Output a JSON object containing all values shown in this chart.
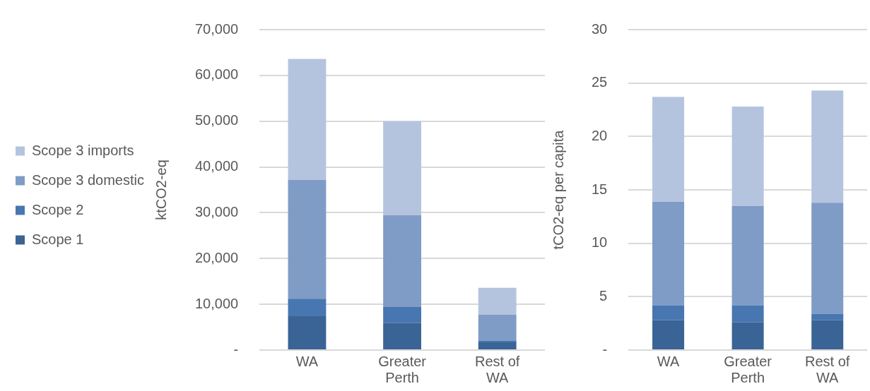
{
  "chart_data": [
    {
      "type": "bar",
      "stacked": true,
      "ylabel": "ktCO2-eq",
      "categories": [
        "WA",
        "Greater Perth",
        "Rest of WA"
      ],
      "series": [
        {
          "name": "Scope 1",
          "color": "#3b6496",
          "values": [
            7400,
            5900,
            1700
          ]
        },
        {
          "name": "Scope 2",
          "color": "#4876b0",
          "values": [
            3800,
            3500,
            300
          ]
        },
        {
          "name": "Scope 3 domestic",
          "color": "#7f9cc7",
          "values": [
            26000,
            20100,
            5700
          ]
        },
        {
          "name": "Scope 3 imports",
          "color": "#b5c4de",
          "values": [
            26400,
            20500,
            5900
          ]
        }
      ],
      "ylim": [
        0,
        70000
      ],
      "yticks": [
        {
          "value": 0,
          "label": "-"
        },
        {
          "value": 10000,
          "label": "10,000"
        },
        {
          "value": 20000,
          "label": "20,000"
        },
        {
          "value": 30000,
          "label": "30,000"
        },
        {
          "value": 40000,
          "label": "40,000"
        },
        {
          "value": 50000,
          "label": "50,000"
        },
        {
          "value": 60000,
          "label": "60,000"
        },
        {
          "value": 70000,
          "label": "70,000"
        }
      ],
      "grid": "y",
      "legend": "left"
    },
    {
      "type": "bar",
      "stacked": true,
      "ylabel": "tCO2-eq per capita",
      "categories": [
        "WA",
        "Greater Perth",
        "Rest of WA"
      ],
      "series": [
        {
          "color": "#3b6496",
          "values": [
            2.8,
            2.6,
            2.8
          ]
        },
        {
          "color": "#4876b0",
          "values": [
            1.4,
            1.6,
            0.6
          ]
        },
        {
          "color": "#7f9cc7",
          "values": [
            9.7,
            9.3,
            10.4
          ]
        },
        {
          "color": "#b5c4de",
          "values": [
            9.8,
            9.3,
            10.5
          ]
        }
      ],
      "ylim": [
        0,
        30
      ],
      "yticks": [
        {
          "value": 0,
          "label": "-"
        },
        5,
        10,
        15,
        20,
        25,
        30
      ],
      "grid": "y",
      "legend": false
    }
  ]
}
